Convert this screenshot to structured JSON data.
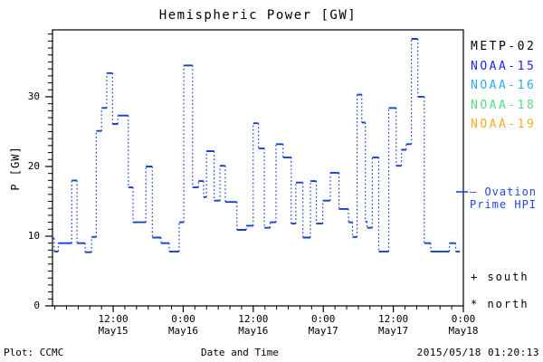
{
  "title": "Hemispheric Power [GW]",
  "axes": {
    "ylabel": "P [GW]",
    "xlabel": "Date and Time"
  },
  "legend": {
    "satellites": [
      {
        "label": "METP-02",
        "color": "#000000"
      },
      {
        "label": "NOAA-15",
        "color": "#2222ff"
      },
      {
        "label": "NOAA-16",
        "color": "#28aaff"
      },
      {
        "label": "NOAA-18",
        "color": "#55dd88"
      },
      {
        "label": "NOAA-19",
        "color": "#ffaa22"
      }
    ],
    "model_line1": "— Ovation",
    "model_line2": "Prime HPI",
    "model_color": "#2244ee",
    "south_marker": "+ south",
    "north_marker": "* north"
  },
  "footer": {
    "left": "Plot: CCMC",
    "right": "2015/05/18 01:20:13"
  },
  "chart_data": {
    "type": "line",
    "subtype": "stairstep",
    "title": "Hemispheric Power [GW]",
    "xlabel": "Date and Time",
    "ylabel": "P [GW]",
    "grid": false,
    "legend_position": "right-outside",
    "x_axis": {
      "unit": "hours since 2015-05-15 00:00",
      "range": [
        1.6,
        72
      ],
      "minor_tick_step_hours": 2,
      "major_ticks": [
        {
          "h": 12,
          "time": "12:00",
          "date": "May15"
        },
        {
          "h": 24,
          "time": "0:00",
          "date": "May16"
        },
        {
          "h": 36,
          "time": "12:00",
          "date": "May16"
        },
        {
          "h": 48,
          "time": "0:00",
          "date": "May17"
        },
        {
          "h": 60,
          "time": "12:00",
          "date": "May17"
        },
        {
          "h": 72,
          "time": "0:00",
          "date": "May18"
        }
      ]
    },
    "y_axis": {
      "range": [
        0,
        39.6
      ],
      "major_ticks": [
        0,
        10,
        20,
        30
      ],
      "minor_tick_step": 1
    },
    "series": [
      {
        "name": "Ovation Prime HPI",
        "color": "#1540d0",
        "end_t": 71.4,
        "steps": [
          [
            1.6,
            9.7
          ],
          [
            1.9,
            7.8
          ],
          [
            2.6,
            9.0
          ],
          [
            4.9,
            18.0
          ],
          [
            5.8,
            9.0
          ],
          [
            7.2,
            7.7
          ],
          [
            8.3,
            9.9
          ],
          [
            9.1,
            25.1
          ],
          [
            10.0,
            28.4
          ],
          [
            10.9,
            33.4
          ],
          [
            11.9,
            26.1
          ],
          [
            12.8,
            27.3
          ],
          [
            14.6,
            17.0
          ],
          [
            15.4,
            12.0
          ],
          [
            17.6,
            20.0
          ],
          [
            18.7,
            9.8
          ],
          [
            20.2,
            9.0
          ],
          [
            21.6,
            7.8
          ],
          [
            23.3,
            12.0
          ],
          [
            24.1,
            34.5
          ],
          [
            25.6,
            17.0
          ],
          [
            26.6,
            17.9
          ],
          [
            27.5,
            15.6
          ],
          [
            28.0,
            22.2
          ],
          [
            29.3,
            15.1
          ],
          [
            30.3,
            20.1
          ],
          [
            31.2,
            14.9
          ],
          [
            33.2,
            10.9
          ],
          [
            34.8,
            11.5
          ],
          [
            36.0,
            26.2
          ],
          [
            36.9,
            22.6
          ],
          [
            37.9,
            11.2
          ],
          [
            38.9,
            12.0
          ],
          [
            39.9,
            23.2
          ],
          [
            41.1,
            21.3
          ],
          [
            42.5,
            11.8
          ],
          [
            43.3,
            17.7
          ],
          [
            44.5,
            9.8
          ],
          [
            45.8,
            17.9
          ],
          [
            46.8,
            11.8
          ],
          [
            47.9,
            15.1
          ],
          [
            49.2,
            19.1
          ],
          [
            50.7,
            13.9
          ],
          [
            52.3,
            12.0
          ],
          [
            53.0,
            9.9
          ],
          [
            53.8,
            30.3
          ],
          [
            54.6,
            26.3
          ],
          [
            55.2,
            12.1
          ],
          [
            55.5,
            11.2
          ],
          [
            56.4,
            21.3
          ],
          [
            57.5,
            7.8
          ],
          [
            59.2,
            28.4
          ],
          [
            60.5,
            20.1
          ],
          [
            61.4,
            22.4
          ],
          [
            62.2,
            23.2
          ],
          [
            63.1,
            38.3
          ],
          [
            64.2,
            30.0
          ],
          [
            65.3,
            9.0
          ],
          [
            66.4,
            7.8
          ],
          [
            69.6,
            9.0
          ],
          [
            70.7,
            7.8
          ]
        ]
      }
    ]
  }
}
